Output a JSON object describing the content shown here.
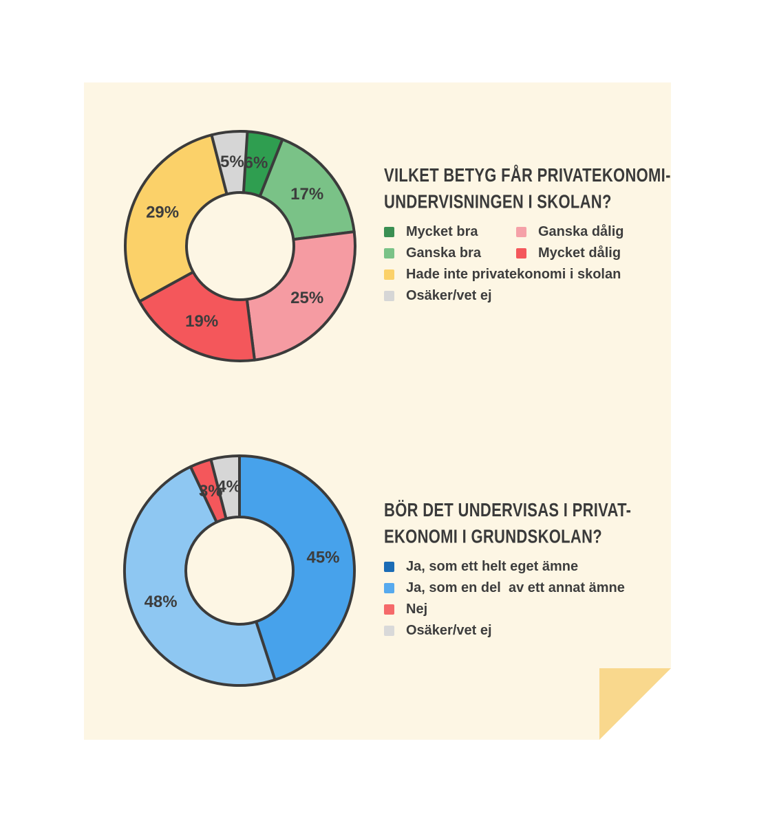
{
  "page": {
    "background": "#ffffff",
    "card_background": "#fdf6e4",
    "fold_color": "#f9d88d",
    "outline_color": "#3b3b3b",
    "text_color": "#3d3d3d"
  },
  "chart_data": [
    {
      "type": "donut",
      "title_lines": [
        "VILKET BETYG FÅR PRIVATEKONOMI-",
        "UNDERVISNINGEN I SKOLAN?"
      ],
      "unit": "%",
      "start_angle_deg": 0,
      "stroke": "#3b3b3b",
      "slices": [
        {
          "label": "Mycket bra",
          "value": 6,
          "color": "#2f9e50"
        },
        {
          "label": "Ganska bra",
          "value": 17,
          "color": "#7ac287"
        },
        {
          "label": "Ganska dålig",
          "value": 25,
          "color": "#f59ba2"
        },
        {
          "label": "Mycket dålig",
          "value": 19,
          "color": "#f4575b"
        },
        {
          "label": "Hade inte privatekonomi i skolan",
          "value": 29,
          "color": "#fbd169"
        },
        {
          "label": "Osäker/vet ej",
          "value": 5,
          "color": "#d6d6d6"
        }
      ],
      "legend": [
        {
          "label": "Mycket bra",
          "swatch": "#3a8f52",
          "full_row": false
        },
        {
          "label": "Ganska dålig",
          "swatch": "#f5a1a8",
          "full_row": false
        },
        {
          "label": "Ganska bra",
          "swatch": "#7ac287",
          "full_row": false
        },
        {
          "label": "Mycket dålig",
          "swatch": "#f4575b",
          "full_row": false
        },
        {
          "label": "Hade inte privatekonomi i skolan",
          "swatch": "#fbd169",
          "full_row": true
        },
        {
          "label": "Osäker/vet ej",
          "swatch": "#d6d6d6",
          "full_row": true
        }
      ]
    },
    {
      "type": "donut",
      "title_lines": [
        "BÖR DET UNDERVISAS I PRIVAT-",
        "EKONOMI I GRUNDSKOLAN?"
      ],
      "unit": "%",
      "start_angle_deg": 0,
      "stroke": "#3b3b3b",
      "slices": [
        {
          "label": "Ja, som ett helt eget ämne",
          "value": 45,
          "color": "#47a2eb"
        },
        {
          "label": "Ja, som en del  av ett annat ämne",
          "value": 48,
          "color": "#8ec7f2"
        },
        {
          "label": "Nej",
          "value": 3,
          "color": "#f4575b"
        },
        {
          "label": "Osäker/vet ej",
          "value": 4,
          "color": "#d6d6d6"
        }
      ],
      "legend": [
        {
          "label": "Ja, som ett helt eget ämne",
          "swatch": "#1b6cb5",
          "full_row": true
        },
        {
          "label": "Ja, som en del  av ett annat ämne",
          "swatch": "#57aaee",
          "full_row": true
        },
        {
          "label": "Nej",
          "swatch": "#f56a6a",
          "full_row": true
        },
        {
          "label": "Osäker/vet ej",
          "swatch": "#d9d9d9",
          "full_row": true
        }
      ]
    }
  ]
}
